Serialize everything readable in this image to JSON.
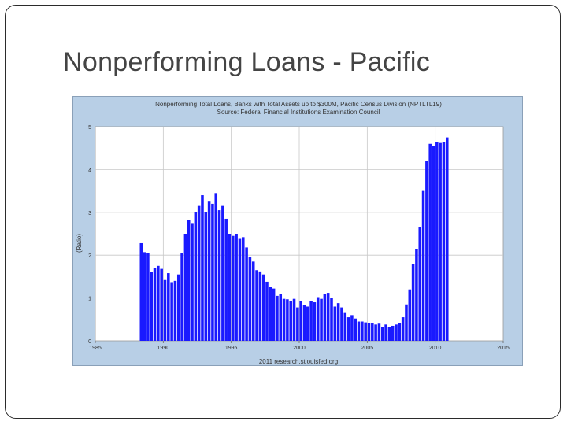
{
  "slide": {
    "title": "Nonperforming Loans - Pacific"
  },
  "colors": {
    "panel_bg": "#b8cfe6",
    "plot_bg": "#ffffff",
    "bar": "#1a1aff",
    "grid": "#c8c8c8",
    "text": "#333333"
  },
  "chart_data": {
    "type": "bar",
    "title": "Nonperforming Total Loans, Banks with Total Assets up to $300M, Pacific Census Division (NPTLTL19)",
    "subtitle": "Source: Federal Financial Institutions Examination Council",
    "footer": "2011 research.stlouisfed.org",
    "ylabel": "(Ratio)",
    "xlabel": "",
    "xlim": [
      1985,
      2015
    ],
    "ylim": [
      0,
      5
    ],
    "grid": true,
    "xticks": [
      1985,
      1990,
      1995,
      2000,
      2005,
      2010,
      2015
    ],
    "yticks": [
      0,
      1,
      2,
      3,
      4,
      5
    ],
    "series": [
      {
        "x": [
          1988.375,
          1988.625,
          1988.875,
          1989.125,
          1989.375,
          1989.625,
          1989.875,
          1990.125,
          1990.375,
          1990.625,
          1990.875,
          1991.125,
          1991.375,
          1991.625,
          1991.875,
          1992.125,
          1992.375,
          1992.625,
          1992.875,
          1993.125,
          1993.375,
          1993.625,
          1993.875,
          1994.125,
          1994.375,
          1994.625,
          1994.875,
          1995.125,
          1995.375,
          1995.625,
          1995.875,
          1996.125,
          1996.375,
          1996.625,
          1996.875,
          1997.125,
          1997.375,
          1997.625,
          1997.875,
          1998.125,
          1998.375,
          1998.625,
          1998.875,
          1999.125,
          1999.375,
          1999.625,
          1999.875,
          2000.125,
          2000.375,
          2000.625,
          2000.875,
          2001.125,
          2001.375,
          2001.625,
          2001.875,
          2002.125,
          2002.375,
          2002.625,
          2002.875,
          2003.125,
          2003.375,
          2003.625,
          2003.875,
          2004.125,
          2004.375,
          2004.625,
          2004.875,
          2005.125,
          2005.375,
          2005.625,
          2005.875,
          2006.125,
          2006.375,
          2006.625,
          2006.875,
          2007.125,
          2007.375,
          2007.625,
          2007.875,
          2008.125,
          2008.375,
          2008.625,
          2008.875,
          2009.125,
          2009.375,
          2009.625,
          2009.875,
          2010.125,
          2010.375,
          2010.625,
          2010.875
        ],
        "values": [
          2.28,
          2.07,
          2.05,
          1.6,
          1.7,
          1.75,
          1.68,
          1.42,
          1.58,
          1.37,
          1.4,
          1.55,
          2.05,
          2.5,
          2.82,
          2.75,
          3.0,
          3.15,
          3.4,
          3.0,
          3.25,
          3.2,
          3.45,
          3.05,
          3.15,
          2.85,
          2.5,
          2.45,
          2.5,
          2.38,
          2.42,
          2.18,
          1.95,
          1.85,
          1.65,
          1.62,
          1.55,
          1.38,
          1.25,
          1.22,
          1.05,
          1.1,
          0.98,
          0.97,
          0.93,
          0.98,
          0.78,
          0.92,
          0.83,
          0.8,
          0.92,
          0.9,
          1.02,
          0.98,
          1.1,
          1.12,
          1.0,
          0.8,
          0.88,
          0.78,
          0.65,
          0.55,
          0.6,
          0.52,
          0.45,
          0.45,
          0.43,
          0.42,
          0.42,
          0.38,
          0.4,
          0.32,
          0.38,
          0.33,
          0.35,
          0.38,
          0.42,
          0.55,
          0.85,
          1.2,
          1.8,
          2.15,
          2.65,
          3.5,
          4.2,
          4.6,
          4.55,
          4.65,
          4.62,
          4.65,
          4.75
        ]
      }
    ]
  }
}
